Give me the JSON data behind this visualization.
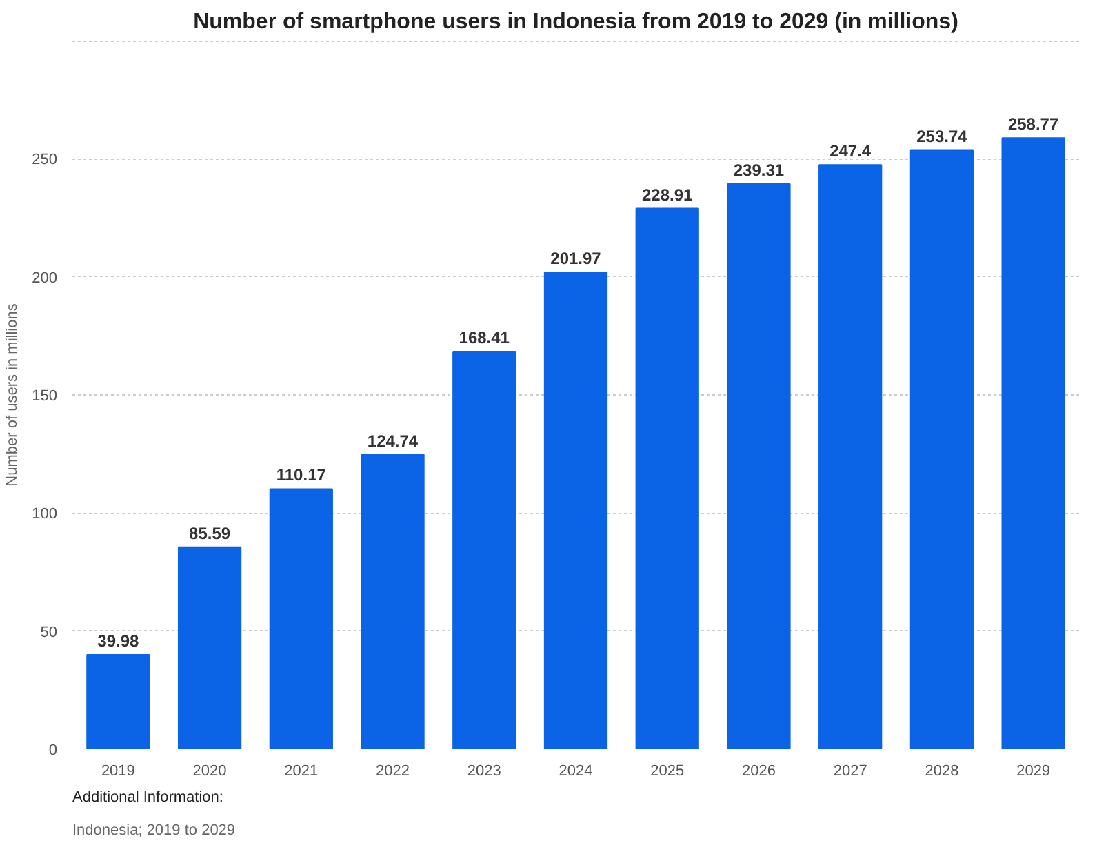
{
  "chart_data": {
    "type": "bar",
    "title": "Number of smartphone users in Indonesia from 2019 to 2029 (in millions)",
    "ylabel": "Number of users in millions",
    "categories": [
      "2019",
      "2020",
      "2021",
      "2022",
      "2023",
      "2024",
      "2025",
      "2026",
      "2027",
      "2028",
      "2029"
    ],
    "values": [
      39.98,
      85.59,
      110.17,
      124.74,
      168.41,
      201.97,
      228.91,
      239.31,
      247.4,
      253.74,
      258.77
    ],
    "color": "#0b63e5",
    "ylim": [
      0,
      300
    ],
    "yticks": [
      0,
      50,
      100,
      150,
      200,
      250,
      {
        "value": 300,
        "label": null
      }
    ],
    "grid": "y",
    "data_labels": true,
    "annotations": [
      "Additional Information:",
      "Indonesia; 2019 to 2029"
    ]
  }
}
